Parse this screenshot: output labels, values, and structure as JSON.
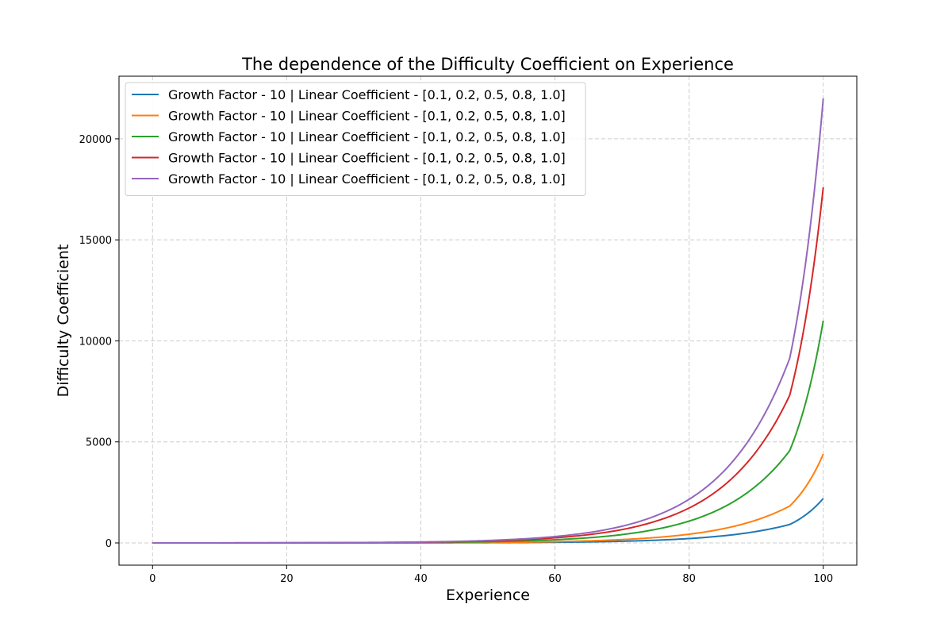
{
  "chart_data": {
    "type": "line",
    "title": "The dependence of the Difficulty Coefficient on Experience",
    "xlabel": "Experience",
    "ylabel": "Difficulty Coefficient",
    "xlim": [
      -5,
      105
    ],
    "ylim": [
      -1100,
      23100
    ],
    "xticks": [
      0,
      20,
      40,
      60,
      80,
      100
    ],
    "yticks": [
      0,
      5000,
      10000,
      15000,
      20000
    ],
    "grid": true,
    "legend_position": "upper-left",
    "x": [
      0,
      10,
      20,
      30,
      40,
      50,
      60,
      65,
      70,
      75,
      80,
      85,
      90,
      95,
      100
    ],
    "series": [
      {
        "name": "Growth Factor - 10 | Linear Coefficient - [0.1, 0.2, 0.5, 0.8, 1.0]",
        "color": "#1f77b4",
        "values": [
          0.1,
          0.26,
          0.69,
          1.8,
          4.6,
          12.1,
          31.6,
          51.1,
          82.6,
          134,
          216,
          349,
          565,
          914,
          2200
        ]
      },
      {
        "name": "Growth Factor - 10 | Linear Coefficient - [0.1, 0.2, 0.5, 0.8, 1.0]",
        "color": "#ff7f0e",
        "values": [
          0.2,
          0.52,
          1.37,
          3.6,
          9.2,
          24.2,
          63.2,
          102,
          165,
          268,
          432,
          698,
          1130,
          1828,
          4400
        ]
      },
      {
        "name": "Growth Factor - 10 | Linear Coefficient - [0.1, 0.2, 0.5, 0.8, 1.0]",
        "color": "#2ca02c",
        "values": [
          0.5,
          1.3,
          3.4,
          8.9,
          23,
          60.5,
          158,
          255,
          413,
          670,
          1080,
          1745,
          2825,
          4570,
          11000
        ]
      },
      {
        "name": "Growth Factor - 10 | Linear Coefficient - [0.1, 0.2, 0.5, 0.8, 1.0]",
        "color": "#d62728",
        "values": [
          0.8,
          2.1,
          5.5,
          14.2,
          36.8,
          96.8,
          253,
          408,
          661,
          1072,
          1728,
          2792,
          4520,
          7312,
          17600
        ]
      },
      {
        "name": "Growth Factor - 10 | Linear Coefficient - [0.1, 0.2, 0.5, 0.8, 1.0]",
        "color": "#9467bd",
        "values": [
          1.0,
          2.6,
          6.9,
          17.8,
          46,
          121,
          316,
          511,
          826,
          1340,
          2160,
          3490,
          5650,
          9140,
          22000
        ]
      }
    ]
  }
}
